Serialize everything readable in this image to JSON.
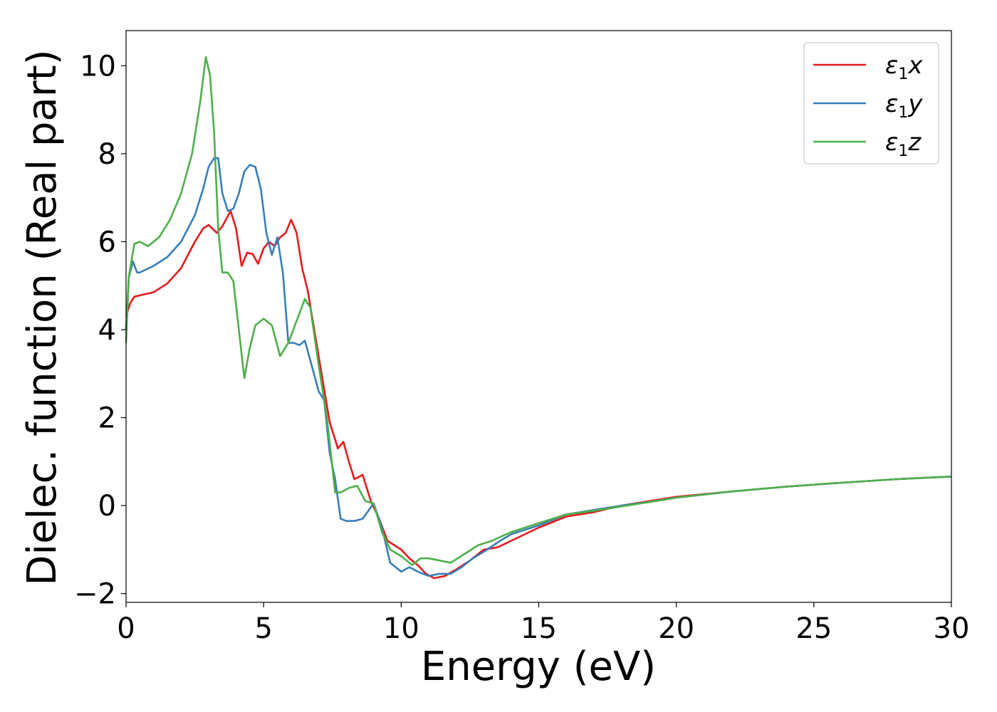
{
  "chart_data": {
    "type": "line",
    "title": "",
    "xlabel": "Energy (eV)",
    "ylabel": "Dielec. function (Real part)",
    "xlim": [
      0,
      30
    ],
    "ylim": [
      -2.2,
      10.8
    ],
    "xticks": [
      0,
      5,
      10,
      15,
      20,
      25,
      30
    ],
    "yticks": [
      -2,
      0,
      2,
      4,
      6,
      8,
      10
    ],
    "xtick_labels": [
      "0",
      "5",
      "10",
      "15",
      "20",
      "25",
      "30"
    ],
    "ytick_labels": [
      "−2",
      "0",
      "2",
      "4",
      "6",
      "8",
      "10"
    ],
    "grid": false,
    "legend_position": "top-right",
    "series": [
      {
        "name": "ε1x",
        "legend_main": "ε",
        "legend_sub": "1",
        "legend_var": "x",
        "color": "#e41a1c",
        "x": [
          0,
          0.15,
          0.3,
          0.5,
          1.0,
          1.5,
          2.0,
          2.5,
          2.8,
          3.0,
          3.3,
          3.5,
          3.8,
          4.0,
          4.2,
          4.4,
          4.6,
          4.8,
          5.0,
          5.2,
          5.4,
          5.6,
          5.8,
          6.0,
          6.2,
          6.4,
          6.6,
          7.0,
          7.4,
          7.7,
          7.9,
          8.1,
          8.3,
          8.6,
          8.9,
          9.2,
          9.5,
          10.0,
          10.3,
          10.6,
          10.9,
          11.2,
          11.6,
          12.0,
          12.5,
          13.0,
          13.5,
          14.0,
          15.0,
          16.0,
          17.0,
          18.0,
          19.0,
          20.0,
          22.0,
          24.0,
          26.0,
          28.0,
          30.0
        ],
        "y": [
          4.3,
          4.6,
          4.75,
          4.78,
          4.85,
          5.05,
          5.4,
          6.0,
          6.3,
          6.38,
          6.2,
          6.35,
          6.7,
          6.3,
          5.45,
          5.75,
          5.72,
          5.5,
          5.85,
          6.0,
          5.9,
          6.1,
          6.2,
          6.5,
          6.2,
          5.4,
          4.9,
          3.4,
          1.9,
          1.3,
          1.45,
          1.0,
          0.6,
          0.7,
          0.1,
          -0.3,
          -0.8,
          -1.0,
          -1.2,
          -1.35,
          -1.55,
          -1.65,
          -1.6,
          -1.45,
          -1.25,
          -1.0,
          -0.95,
          -0.8,
          -0.5,
          -0.25,
          -0.15,
          0.0,
          0.1,
          0.2,
          0.32,
          0.43,
          0.52,
          0.6,
          0.66
        ]
      },
      {
        "name": "ε1y",
        "legend_main": "ε",
        "legend_sub": "1",
        "legend_var": "y",
        "color": "#377eb8",
        "x": [
          0,
          0.1,
          0.25,
          0.4,
          0.5,
          1.0,
          1.5,
          2.0,
          2.5,
          2.8,
          3.0,
          3.2,
          3.35,
          3.5,
          3.7,
          3.9,
          4.1,
          4.3,
          4.5,
          4.7,
          4.9,
          5.1,
          5.3,
          5.5,
          5.7,
          5.9,
          6.1,
          6.3,
          6.5,
          6.7,
          7.0,
          7.2,
          7.4,
          7.6,
          7.8,
          8.0,
          8.3,
          8.6,
          9.0,
          9.3,
          9.6,
          10.0,
          10.3,
          10.6,
          11.0,
          11.4,
          11.8,
          12.2,
          12.6,
          13.0,
          13.6,
          14.0,
          15.0,
          16.0,
          16.5,
          17.0,
          18.0,
          19.0,
          20.0,
          22.0,
          24.0,
          26.0,
          28.0,
          30.0
        ],
        "y": [
          4.0,
          5.2,
          5.55,
          5.3,
          5.3,
          5.45,
          5.65,
          6.0,
          6.6,
          7.2,
          7.7,
          7.9,
          7.9,
          7.1,
          6.7,
          6.75,
          7.1,
          7.6,
          7.75,
          7.7,
          7.2,
          6.2,
          5.7,
          6.1,
          5.3,
          3.7,
          3.7,
          3.65,
          3.75,
          3.3,
          2.6,
          2.4,
          1.2,
          0.6,
          -0.3,
          -0.35,
          -0.35,
          -0.3,
          0.05,
          -0.5,
          -1.3,
          -1.5,
          -1.4,
          -1.5,
          -1.6,
          -1.55,
          -1.55,
          -1.4,
          -1.2,
          -1.05,
          -0.8,
          -0.65,
          -0.45,
          -0.2,
          -0.15,
          -0.1,
          0.0,
          0.08,
          0.18,
          0.32,
          0.43,
          0.52,
          0.6,
          0.66
        ]
      },
      {
        "name": "ε1z",
        "legend_main": "ε",
        "legend_sub": "1",
        "legend_var": "z",
        "color": "#4daf4a",
        "x": [
          0,
          0.1,
          0.3,
          0.5,
          0.8,
          1.2,
          1.6,
          2.0,
          2.4,
          2.7,
          2.9,
          3.05,
          3.2,
          3.35,
          3.5,
          3.7,
          3.9,
          4.1,
          4.3,
          4.5,
          4.7,
          5.0,
          5.3,
          5.6,
          5.9,
          6.2,
          6.5,
          6.7,
          7.0,
          7.3,
          7.6,
          7.8,
          8.1,
          8.4,
          8.7,
          9.0,
          9.3,
          9.6,
          10.0,
          10.4,
          10.7,
          11.0,
          11.4,
          11.8,
          12.3,
          12.8,
          13.3,
          14.0,
          15.0,
          16.0,
          17.0,
          18.0,
          19.0,
          20.0,
          22.0,
          24.0,
          26.0,
          28.0,
          30.0
        ],
        "y": [
          3.7,
          5.2,
          5.95,
          6.0,
          5.9,
          6.1,
          6.5,
          7.1,
          8.0,
          9.2,
          10.2,
          9.8,
          8.5,
          6.3,
          5.3,
          5.3,
          5.1,
          4.0,
          2.9,
          3.6,
          4.1,
          4.25,
          4.1,
          3.4,
          3.7,
          4.2,
          4.7,
          4.5,
          3.2,
          2.0,
          0.3,
          0.3,
          0.4,
          0.45,
          0.1,
          0.05,
          -0.6,
          -1.0,
          -1.15,
          -1.35,
          -1.2,
          -1.2,
          -1.25,
          -1.3,
          -1.1,
          -0.9,
          -0.8,
          -0.6,
          -0.4,
          -0.2,
          -0.12,
          -0.02,
          0.08,
          0.18,
          0.32,
          0.43,
          0.52,
          0.6,
          0.66
        ]
      }
    ]
  }
}
